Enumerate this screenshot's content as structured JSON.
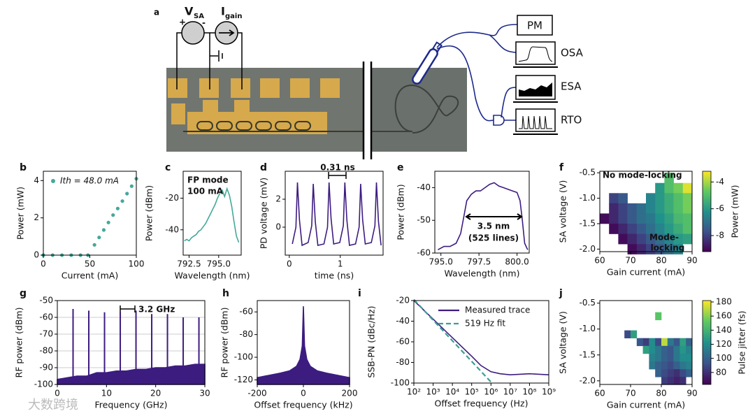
{
  "diagram": {
    "label": "a",
    "v_label": "V",
    "v_sub": "SA",
    "plus": "+",
    "minus": "-",
    "i_label": "I",
    "i_sub": "gain",
    "instruments": [
      "PM",
      "OSA",
      "ESA",
      "RTO"
    ]
  },
  "watermark": "大数跨境",
  "chart_data": [
    {
      "panel": "b",
      "type": "scatter",
      "xlabel": "Current (mA)",
      "ylabel": "Power (mW)",
      "legend": "upper left",
      "xlim": [
        0,
        100
      ],
      "xticks": [
        0,
        50,
        100
      ],
      "ylim": [
        0,
        4.5
      ],
      "yticks": [
        0,
        2,
        4
      ],
      "series": [
        {
          "name": "Ith = 48.0 mA",
          "color": "#45a89a",
          "x": [
            0,
            10,
            20,
            30,
            40,
            48,
            55,
            60,
            65,
            70,
            75,
            80,
            85,
            90,
            95,
            100
          ],
          "values": [
            0,
            0,
            0,
            0,
            0,
            0,
            0.55,
            0.95,
            1.35,
            1.75,
            2.15,
            2.5,
            2.9,
            3.3,
            3.7,
            4.1
          ]
        }
      ]
    },
    {
      "panel": "c",
      "type": "line",
      "xlabel": "Wavelength (nm)",
      "ylabel": "Power (dBm)",
      "annotations": [
        "FP mode",
        "100 mA"
      ],
      "xlim": [
        792.0,
        796.9
      ],
      "xticks": [
        792.5,
        {
          "value": 795,
          "label": "795.0"
        }
      ],
      "ylim": [
        -56,
        -3
      ],
      "yticks": [
        -20,
        -40
      ],
      "series": [
        {
          "color": "#45a89a",
          "x": [
            792.1,
            792.3,
            792.5,
            792.7,
            792.9,
            793.1,
            793.3,
            793.5,
            793.7,
            793.9,
            794.1,
            794.3,
            794.5,
            794.7,
            794.9,
            795.1,
            795.3,
            795.5,
            795.7,
            795.9,
            796.1,
            796.3,
            796.5,
            796.7
          ],
          "values": [
            -47,
            -46,
            -47,
            -45,
            -44,
            -43,
            -41,
            -40,
            -38,
            -36,
            -33,
            -30,
            -27,
            -24,
            -20,
            -17,
            -15,
            -19,
            -14,
            -18,
            -25,
            -35,
            -44,
            -48
          ]
        }
      ]
    },
    {
      "panel": "d",
      "type": "line",
      "xlabel": "time (ns)",
      "ylabel": "PD voltage (mV)",
      "annotations": [
        "0.31 ns"
      ],
      "xlim": [
        -0.08,
        1.84
      ],
      "xticks": [
        0,
        1
      ],
      "ylim": [
        -2,
        4
      ],
      "yticks": [
        0,
        2
      ],
      "series": [
        {
          "color": "#3d1c80",
          "x": [
            0.06,
            0.13,
            0.16,
            0.2,
            0.25,
            0.37,
            0.44,
            0.47,
            0.51,
            0.56,
            0.68,
            0.75,
            0.78,
            0.82,
            0.87,
            0.99,
            1.06,
            1.09,
            1.13,
            1.18,
            1.3,
            1.37,
            1.4,
            1.44,
            1.49,
            1.61,
            1.68,
            1.71,
            1.75,
            1.8
          ],
          "values": [
            -1.2,
            0,
            3.2,
            0.5,
            -1.3,
            -1.1,
            0.1,
            3.1,
            0.4,
            -1.3,
            -1.2,
            0,
            3.2,
            0.6,
            -1.2,
            -1.1,
            0.1,
            3.2,
            0.5,
            -1.3,
            -1.2,
            0,
            3.1,
            0.5,
            -1.2,
            -1.1,
            0.1,
            3.2,
            0.4,
            -1.3
          ]
        }
      ]
    },
    {
      "panel": "e",
      "type": "line",
      "xlabel": "Wavelength (nm)",
      "ylabel": "Power (dBm)",
      "annotations": [
        "3.5 nm",
        "(525 lines)"
      ],
      "xlim": [
        794.6,
        800.8
      ],
      "xticks": [
        {
          "value": 795,
          "label": "795.0"
        },
        797.5,
        {
          "value": 800,
          "label": "800.0"
        }
      ],
      "ylim": [
        -60,
        -35
      ],
      "yticks": [
        -60,
        -50,
        -40
      ],
      "series": [
        {
          "color": "#3d1c80",
          "x": [
            794.8,
            795.2,
            795.6,
            796.0,
            796.3,
            796.5,
            796.7,
            797.0,
            797.3,
            797.6,
            797.9,
            798.2,
            798.5,
            798.8,
            799.1,
            799.4,
            799.7,
            800.0,
            800.2,
            800.35,
            800.5,
            800.7
          ],
          "values": [
            -59,
            -58,
            -58,
            -57,
            -54,
            -49,
            -44,
            -42,
            -41,
            -41,
            -40,
            -39,
            -38.5,
            -39.5,
            -40,
            -40.5,
            -41,
            -41.5,
            -44,
            -50,
            -57,
            -59
          ]
        }
      ]
    },
    {
      "panel": "f",
      "type": "heatmap",
      "xlabel": "Gain current (mA)",
      "ylabel": "SA voltage (V)",
      "colorbar_label": "Power (mW)",
      "annotations": [
        "No mode-locking",
        "Mode-",
        "locking"
      ],
      "xlim": [
        60,
        90
      ],
      "xticks": [
        60,
        70,
        80,
        90
      ],
      "ylim": [
        -2.05,
        -0.47
      ],
      "yticks": [
        -0.5,
        {
          "value": -1,
          "label": "-1.0"
        },
        -1.5,
        {
          "value": -2,
          "label": "-2.0"
        }
      ],
      "clim": [
        -9.2,
        -3.2
      ],
      "cticks": [
        -4,
        -6,
        -8
      ],
      "x": [
        61.5,
        64.5,
        67.5,
        70.5,
        73.5,
        76.5,
        79.5,
        82.5,
        85.5,
        88.5
      ],
      "y": [
        -0.6,
        -0.8,
        -1.0,
        -1.2,
        -1.4,
        -1.6,
        -1.8,
        -2.0
      ],
      "z": [
        [
          null,
          null,
          null,
          null,
          null,
          null,
          null,
          -5,
          null,
          null
        ],
        [
          null,
          null,
          null,
          null,
          null,
          null,
          -6,
          -5,
          -4.5,
          -3.5
        ],
        [
          null,
          -8,
          -7.5,
          null,
          null,
          -6.5,
          -6,
          -5.5,
          -5,
          -4.5
        ],
        [
          null,
          -8.5,
          -8,
          -7.5,
          -7,
          -6.5,
          -6,
          -5.5,
          -5,
          -4.5
        ],
        [
          -9,
          -8.5,
          -8,
          -7.5,
          -7,
          -6.8,
          -6.2,
          -5.8,
          -5.2,
          -5
        ],
        [
          null,
          -9,
          -8.5,
          -8,
          -7.5,
          -7,
          -6.5,
          -6,
          -5.5,
          -5
        ],
        [
          null,
          null,
          -9,
          -8.5,
          -8,
          -7.5,
          -7,
          -6.5,
          -6,
          -5.8
        ],
        [
          null,
          null,
          null,
          -9,
          -8.5,
          -8,
          -7.5,
          -7,
          -6.5,
          null
        ]
      ]
    },
    {
      "panel": "g",
      "type": "line",
      "xlabel": "Frequency (GHz)",
      "ylabel": "RF power (dBm)",
      "annotations": [
        "3.2 GHz"
      ],
      "grid": true,
      "xlim": [
        0,
        30
      ],
      "xticks": [
        0,
        10,
        20,
        30
      ],
      "ylim": [
        -100,
        -50
      ],
      "yticks": [
        -100,
        -90,
        -80,
        -70,
        -60,
        -50
      ],
      "series": [
        {
          "color": "#3d1c80",
          "fill": true,
          "x": [
            0,
            2,
            4,
            6,
            8,
            10,
            12,
            14,
            16,
            18,
            20,
            22,
            24,
            26,
            28,
            30
          ],
          "values": [
            -97,
            -96,
            -95,
            -95,
            -93,
            -93,
            -92,
            -92,
            -91,
            -91,
            -90,
            -90,
            -89,
            -89,
            -88,
            -88
          ]
        },
        {
          "color": "#3d1c80",
          "stems": true,
          "x": [
            3.2,
            6.4,
            9.6,
            12.8,
            16,
            19.2,
            22.4,
            25.6,
            28.8
          ],
          "values": [
            -55,
            -56,
            -57,
            -57,
            -56,
            -58,
            -58,
            -60,
            -60
          ]
        }
      ]
    },
    {
      "panel": "h",
      "type": "line",
      "xlabel": "Offset frequency (kHz)",
      "ylabel": "RF power (dBm)",
      "xlim": [
        -200,
        200
      ],
      "xticks": [
        -200,
        0,
        200
      ],
      "ylim": [
        -124,
        -50
      ],
      "yticks": [
        -60,
        -80,
        -100,
        -120
      ],
      "series": [
        {
          "color": "#3d1c80",
          "fill": true,
          "x": [
            -200,
            -150,
            -100,
            -60,
            -30,
            -15,
            -5,
            0,
            5,
            15,
            30,
            60,
            100,
            150,
            200
          ],
          "values": [
            -118,
            -116,
            -114,
            -112,
            -108,
            -102,
            -90,
            -55,
            -90,
            -102,
            -108,
            -112,
            -114,
            -116,
            -118
          ]
        }
      ]
    },
    {
      "panel": "i",
      "type": "line",
      "xlabel": "Offset frequency (Hz)",
      "ylabel": "SSB-PN (dBc/Hz)",
      "xscale": "log",
      "legend": "upper right",
      "xlim": [
        100,
        1000000000
      ],
      "xticks": [
        {
          "value": 100,
          "label": "10²"
        },
        {
          "value": 1000,
          "label": "10³"
        },
        {
          "value": 10000,
          "label": "10⁴"
        },
        {
          "value": 100000,
          "label": "10⁵"
        },
        {
          "value": 1000000,
          "label": "10⁶"
        },
        {
          "value": 10000000,
          "label": "10⁷"
        },
        {
          "value": 100000000,
          "label": "10⁸"
        },
        {
          "value": 1000000000,
          "label": "10⁹"
        }
      ],
      "ylim": [
        -100,
        -20
      ],
      "yticks": [
        -20,
        -40,
        -60,
        -80,
        -100
      ],
      "series": [
        {
          "name": "Measured trace",
          "color": "#3d1c80",
          "x": [
            100,
            1000,
            10000,
            100000,
            300000,
            1000000,
            3000000,
            10000000,
            100000000,
            1000000000
          ],
          "values": [
            -20,
            -38,
            -56,
            -74,
            -83,
            -89,
            -91,
            -92,
            -91,
            -92
          ]
        },
        {
          "name": "519 Hz fit",
          "color": "#3d9e95",
          "dash": true,
          "x": [
            100,
            1000000
          ],
          "values": [
            -19,
            -99
          ]
        }
      ]
    },
    {
      "panel": "j",
      "type": "heatmap",
      "xlabel": "Gain current (mA)",
      "ylabel": "SA voltage (V)",
      "colorbar_label": "Pulse jitter (fs)",
      "xlim": [
        60,
        90
      ],
      "xticks": [
        60,
        70,
        80,
        90
      ],
      "ylim": [
        -2.07,
        -0.45
      ],
      "yticks": [
        -0.5,
        {
          "value": -1,
          "label": "-1.0"
        },
        -1.5,
        {
          "value": -2,
          "label": "-2.0"
        }
      ],
      "clim": [
        63,
        182
      ],
      "cticks": [
        80,
        100,
        120,
        140,
        160,
        180
      ],
      "x": [
        69,
        71,
        73,
        75,
        77,
        79,
        81,
        83,
        85,
        87,
        89
      ],
      "y": [
        -0.75,
        -1.1,
        -1.25,
        -1.4,
        -1.55,
        -1.7,
        -1.85,
        -2.0
      ],
      "z": [
        [
          null,
          null,
          null,
          null,
          null,
          150,
          null,
          null,
          null,
          null,
          null
        ],
        [
          90,
          130,
          null,
          null,
          null,
          null,
          null,
          null,
          null,
          null,
          null
        ],
        [
          null,
          null,
          95,
          85,
          120,
          90,
          170,
          110,
          95,
          130,
          100
        ],
        [
          null,
          null,
          null,
          130,
          120,
          110,
          100,
          95,
          110,
          125,
          115
        ],
        [
          null,
          null,
          null,
          null,
          115,
          110,
          100,
          95,
          110,
          120,
          120
        ],
        [
          null,
          null,
          null,
          null,
          110,
          100,
          95,
          90,
          100,
          110,
          115
        ],
        [
          null,
          null,
          null,
          null,
          null,
          100,
          90,
          85,
          80,
          90,
          100
        ],
        [
          null,
          null,
          null,
          null,
          null,
          null,
          85,
          80,
          75,
          80,
          null
        ]
      ]
    }
  ]
}
